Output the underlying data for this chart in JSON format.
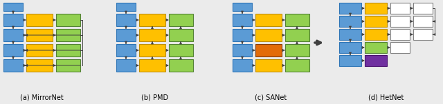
{
  "fig_width": 6.4,
  "fig_height": 1.51,
  "dpi": 100,
  "bg_color": "#ebebeb",
  "blue": "#5b9bd5",
  "yellow": "#ffc000",
  "green": "#92d050",
  "orange": "#e36c09",
  "purple": "#7030a0",
  "white": "#ffffff",
  "blue_ec": "#2e75b6",
  "yellow_ec": "#bf8f00",
  "green_ec": "#538135",
  "orange_ec": "#843c0c",
  "purple_ec": "#4a1070",
  "white_ec": "#808080",
  "arrow_color": "#404040",
  "labels": [
    "(a) MirrorNet",
    "(b) PMD",
    "(c) SANet",
    "(d) HetNet"
  ]
}
